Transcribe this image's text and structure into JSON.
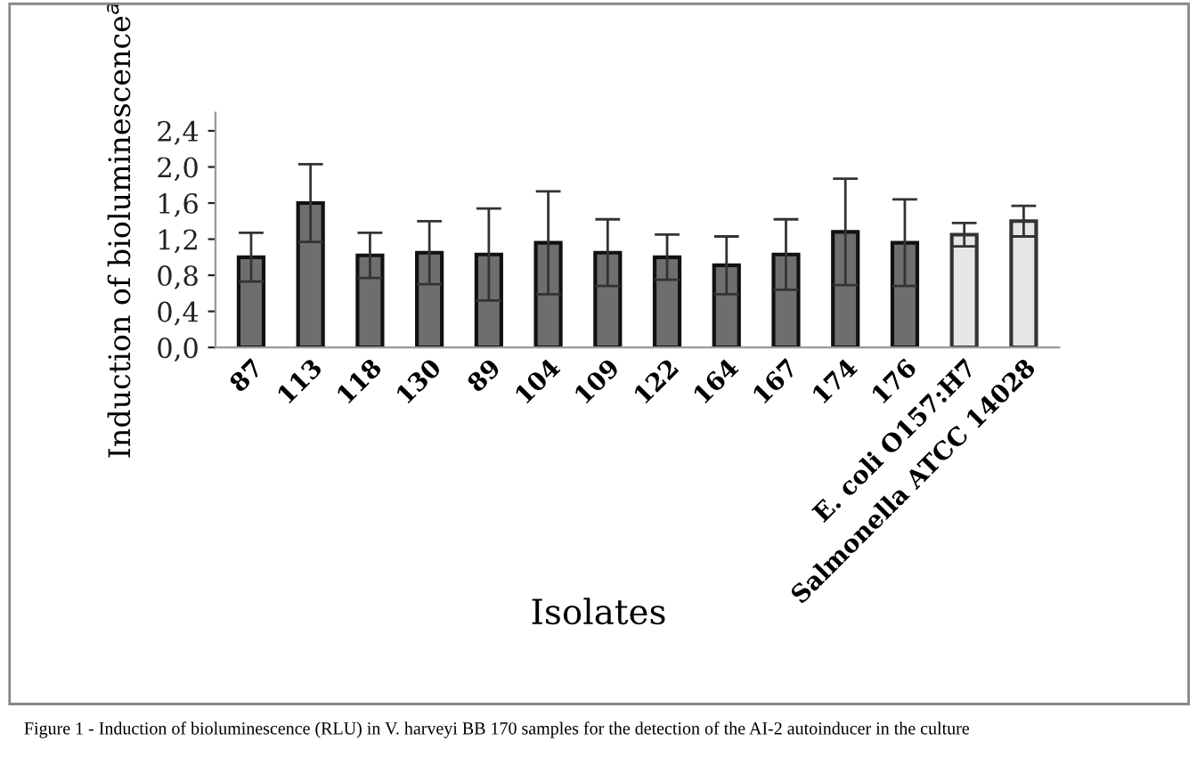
{
  "chart_data": {
    "type": "bar",
    "xlabel": "Isolates",
    "ylabel": "Induction of bioluminescence$^{a}$",
    "categories": [
      "87",
      "113",
      "118",
      "130",
      "89",
      "104",
      "109",
      "122",
      "164",
      "167",
      "174",
      "176",
      "E. coli O157:H7",
      "Salmonella ATCC 14028"
    ],
    "values": [
      1.0,
      1.6,
      1.02,
      1.05,
      1.03,
      1.16,
      1.05,
      1.0,
      0.91,
      1.03,
      1.28,
      1.16,
      1.25,
      1.4
    ],
    "errors": [
      0.27,
      0.43,
      0.25,
      0.35,
      0.51,
      0.57,
      0.37,
      0.25,
      0.32,
      0.39,
      0.59,
      0.48,
      0.13,
      0.17
    ],
    "colors": [
      "#6e6e6e",
      "#6e6e6e",
      "#6e6e6e",
      "#6e6e6e",
      "#6e6e6e",
      "#6e6e6e",
      "#6e6e6e",
      "#6e6e6e",
      "#6e6e6e",
      "#6e6e6e",
      "#6e6e6e",
      "#6e6e6e",
      "#e6e6e6",
      "#e6e6e6"
    ],
    "ylim": [
      0,
      2.6
    ],
    "yticks": [
      {
        "value": 0,
        "label": "0,0"
      },
      {
        "value": 0.4,
        "label": "0,4"
      },
      {
        "value": 0.8,
        "label": "0,8"
      },
      {
        "value": 1.2,
        "label": "1,2"
      },
      {
        "value": 1.6,
        "label": "1,6"
      },
      {
        "value": 2.0,
        "label": "2,0"
      },
      {
        "value": 2.4,
        "label": "2,4"
      }
    ],
    "grid": false,
    "legend": false,
    "annotations": [
      "Figure 1 - Induction of bioluminescence (RLU) in V. harveyi BB 170 samples for the detection of the AI-2 autoinducer in the culture"
    ]
  }
}
